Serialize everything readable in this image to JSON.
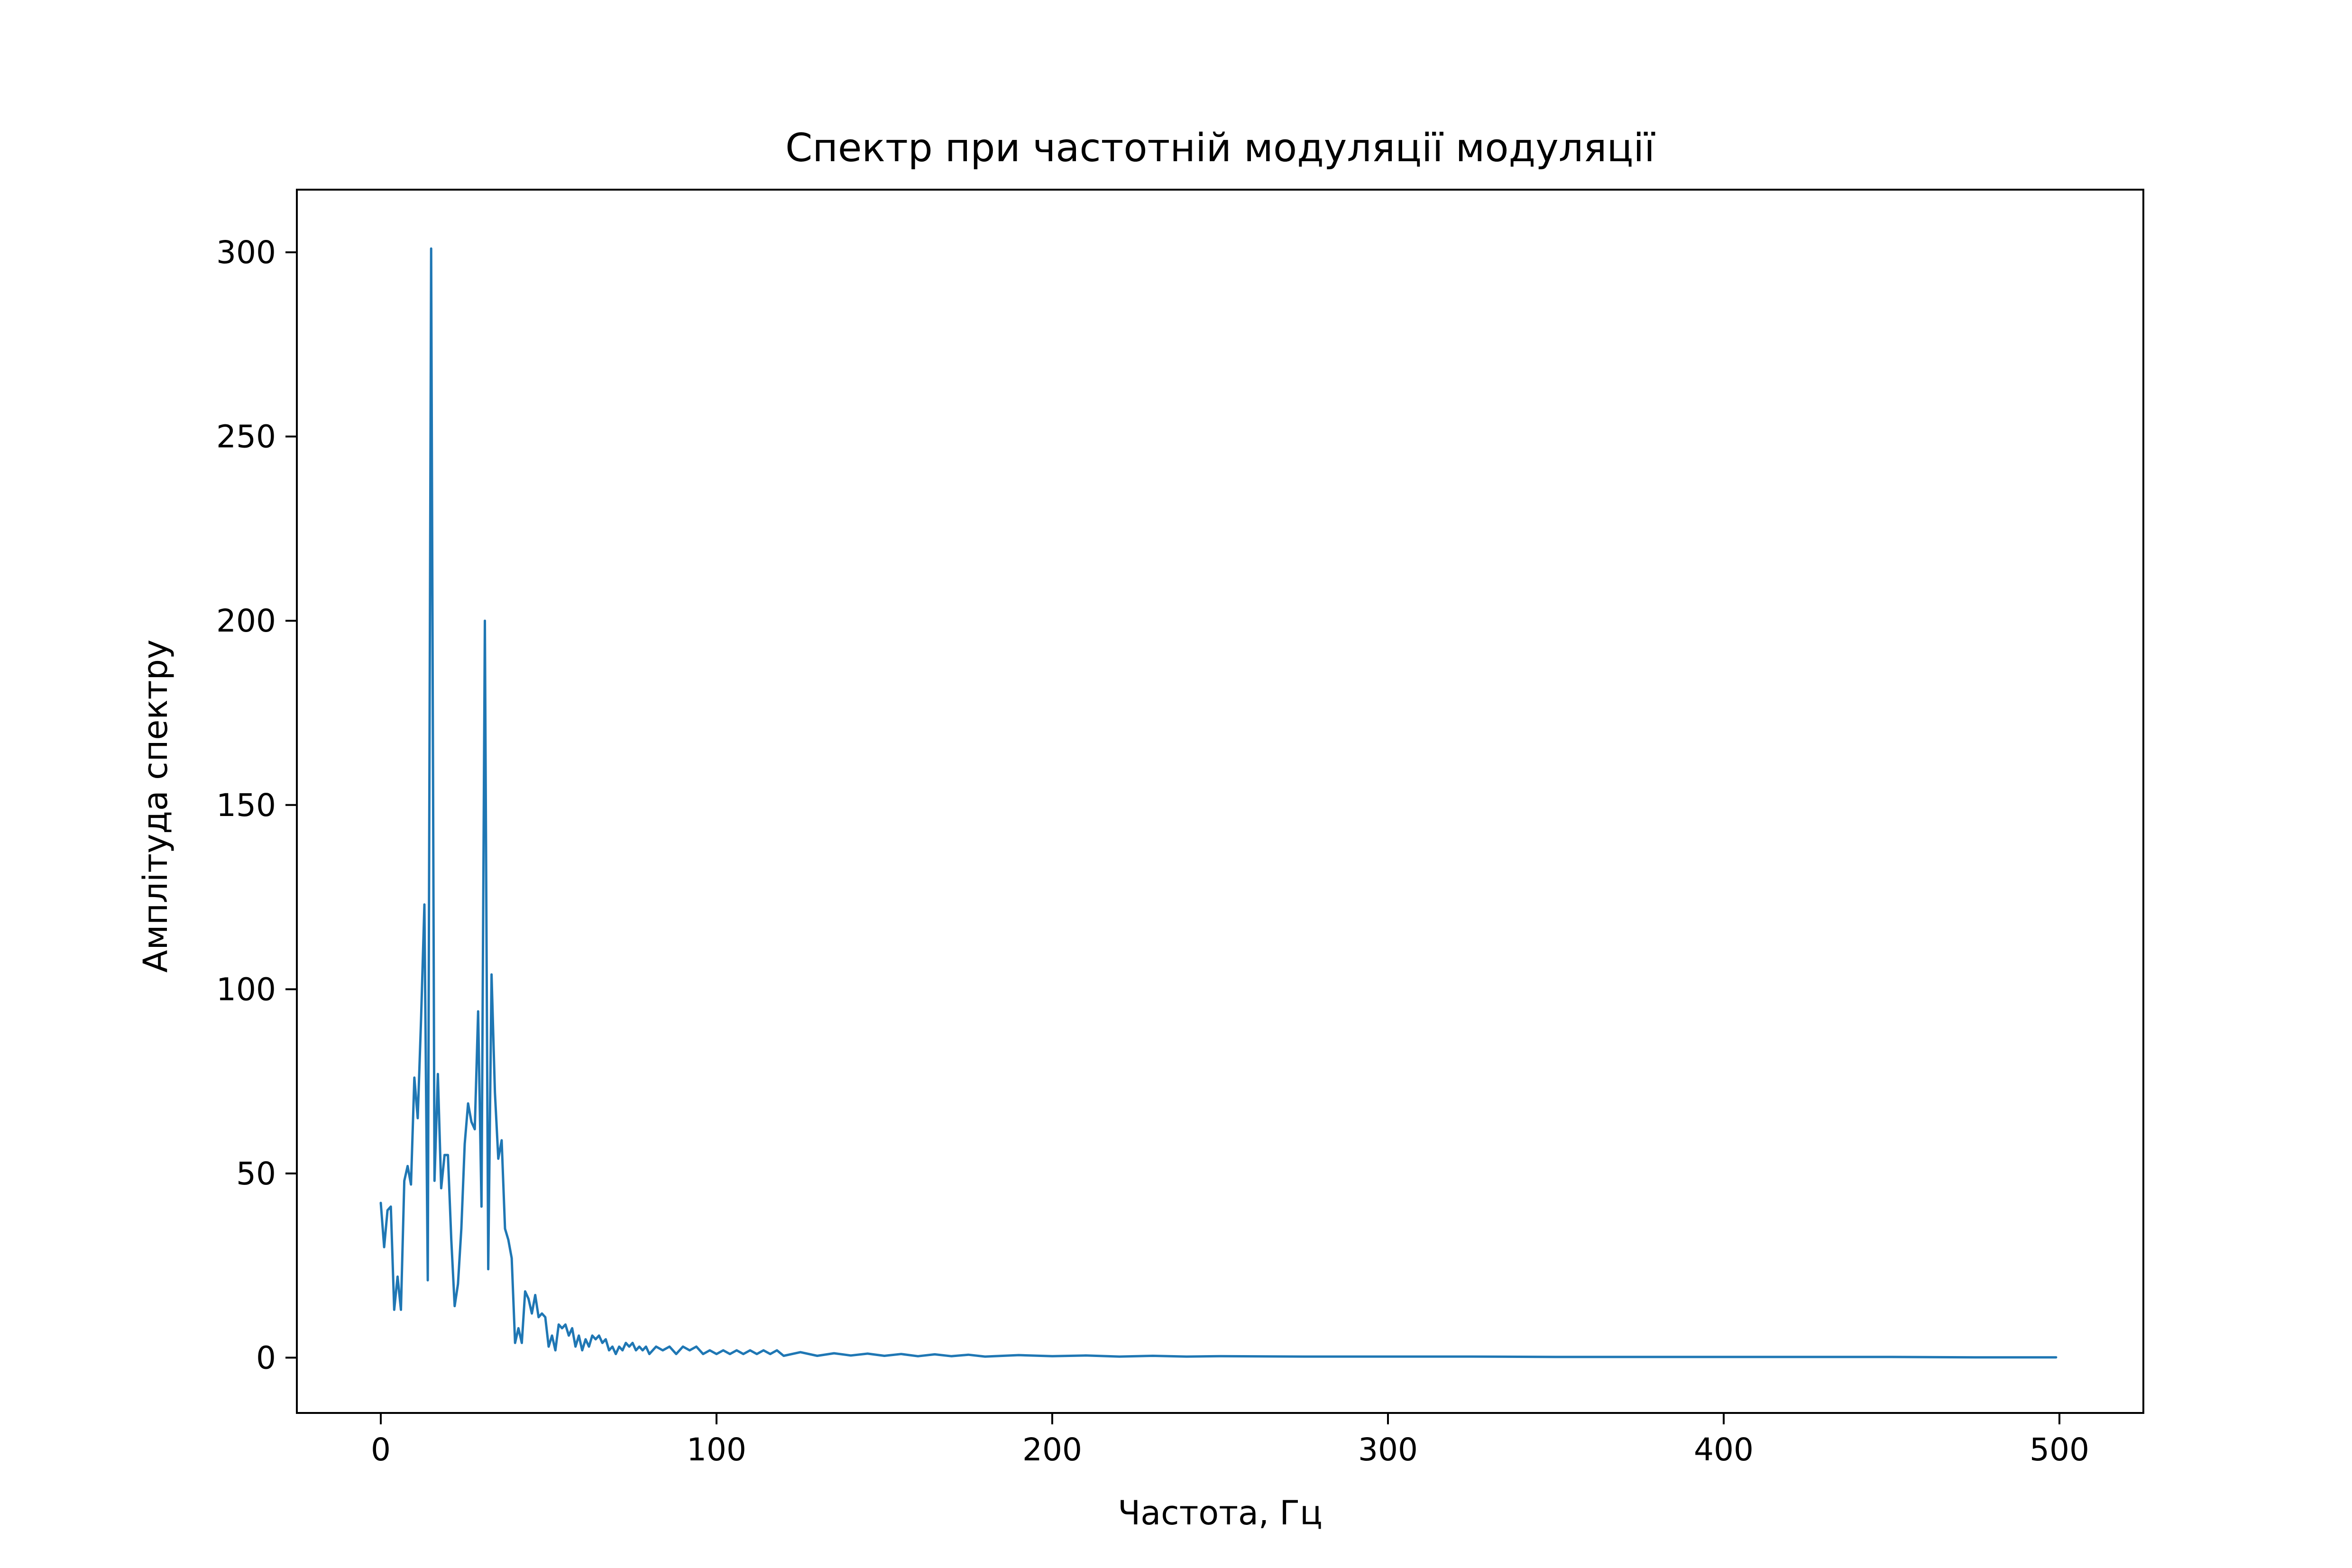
{
  "chart_data": {
    "type": "line",
    "title": "Спектр при частотній модуляції модуляції",
    "xlabel": "Частота, Гц",
    "ylabel": "Амплітуда спектру",
    "xlim": [
      -25,
      525
    ],
    "ylim": [
      -15,
      317
    ],
    "xticks": [
      0,
      100,
      200,
      300,
      400,
      500
    ],
    "yticks": [
      0,
      50,
      100,
      150,
      200,
      250,
      300
    ],
    "grid": false,
    "legend": "none",
    "series": [
      {
        "color": "#1f77b4",
        "points": [
          [
            0,
            42
          ],
          [
            1,
            30
          ],
          [
            2,
            40
          ],
          [
            3,
            41
          ],
          [
            4,
            13
          ],
          [
            5,
            22
          ],
          [
            6,
            13
          ],
          [
            7,
            48
          ],
          [
            8,
            52
          ],
          [
            9,
            47
          ],
          [
            10,
            76
          ],
          [
            11,
            65
          ],
          [
            12,
            92
          ],
          [
            13,
            123
          ],
          [
            14,
            21
          ],
          [
            15,
            301
          ],
          [
            16,
            48
          ],
          [
            17,
            77
          ],
          [
            18,
            46
          ],
          [
            19,
            55
          ],
          [
            20,
            55
          ],
          [
            21,
            32
          ],
          [
            22,
            14
          ],
          [
            23,
            20
          ],
          [
            24,
            35
          ],
          [
            25,
            58
          ],
          [
            26,
            69
          ],
          [
            27,
            64
          ],
          [
            28,
            62
          ],
          [
            29,
            94
          ],
          [
            30,
            41
          ],
          [
            31,
            200
          ],
          [
            32,
            24
          ],
          [
            33,
            104
          ],
          [
            34,
            72
          ],
          [
            35,
            54
          ],
          [
            36,
            59
          ],
          [
            37,
            35
          ],
          [
            38,
            32
          ],
          [
            39,
            27
          ],
          [
            40,
            4
          ],
          [
            41,
            8
          ],
          [
            42,
            4
          ],
          [
            43,
            18
          ],
          [
            44,
            16
          ],
          [
            45,
            12
          ],
          [
            46,
            17
          ],
          [
            47,
            11
          ],
          [
            48,
            12
          ],
          [
            49,
            11
          ],
          [
            50,
            3
          ],
          [
            51,
            6
          ],
          [
            52,
            2
          ],
          [
            53,
            9
          ],
          [
            54,
            8
          ],
          [
            55,
            9
          ],
          [
            56,
            6
          ],
          [
            57,
            8
          ],
          [
            58,
            3
          ],
          [
            59,
            6
          ],
          [
            60,
            2
          ],
          [
            61,
            5
          ],
          [
            62,
            3
          ],
          [
            63,
            6
          ],
          [
            64,
            5
          ],
          [
            65,
            6
          ],
          [
            66,
            4
          ],
          [
            67,
            5
          ],
          [
            68,
            2
          ],
          [
            69,
            3
          ],
          [
            70,
            1
          ],
          [
            71,
            3
          ],
          [
            72,
            2
          ],
          [
            73,
            4
          ],
          [
            74,
            3
          ],
          [
            75,
            4
          ],
          [
            76,
            2
          ],
          [
            77,
            3
          ],
          [
            78,
            2
          ],
          [
            79,
            3
          ],
          [
            80,
            1
          ],
          [
            82,
            3
          ],
          [
            84,
            2
          ],
          [
            86,
            3
          ],
          [
            88,
            1
          ],
          [
            90,
            3
          ],
          [
            92,
            2
          ],
          [
            94,
            3
          ],
          [
            96,
            1
          ],
          [
            98,
            2
          ],
          [
            100,
            1
          ],
          [
            102,
            2
          ],
          [
            104,
            1
          ],
          [
            106,
            2
          ],
          [
            108,
            1
          ],
          [
            110,
            2
          ],
          [
            112,
            1
          ],
          [
            114,
            2
          ],
          [
            116,
            1
          ],
          [
            118,
            2
          ],
          [
            120,
            0.5
          ],
          [
            125,
            1.5
          ],
          [
            130,
            0.5
          ],
          [
            135,
            1.2
          ],
          [
            140,
            0.6
          ],
          [
            145,
            1.1
          ],
          [
            150,
            0.5
          ],
          [
            155,
            1
          ],
          [
            160,
            0.4
          ],
          [
            165,
            0.9
          ],
          [
            170,
            0.4
          ],
          [
            175,
            0.8
          ],
          [
            180,
            0.3
          ],
          [
            190,
            0.7
          ],
          [
            200,
            0.4
          ],
          [
            210,
            0.6
          ],
          [
            220,
            0.3
          ],
          [
            230,
            0.5
          ],
          [
            240,
            0.3
          ],
          [
            250,
            0.4
          ],
          [
            275,
            0.3
          ],
          [
            300,
            0.3
          ],
          [
            325,
            0.3
          ],
          [
            350,
            0.2
          ],
          [
            375,
            0.2
          ],
          [
            400,
            0.2
          ],
          [
            425,
            0.2
          ],
          [
            450,
            0.2
          ],
          [
            475,
            0.1
          ],
          [
            499,
            0.1
          ]
        ]
      }
    ]
  }
}
